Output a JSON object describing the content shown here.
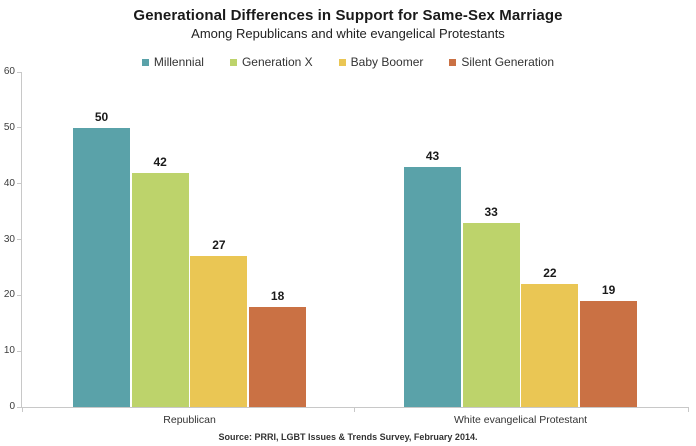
{
  "header": {
    "title": "Generational Differences in Support for Same-Sex Marriage",
    "subtitle": "Among Republicans and white evangelical Protestants"
  },
  "chart_data": {
    "type": "bar",
    "title": "Generational Differences in Support for Same-Sex Marriage",
    "subtitle": "Among Republicans and white evangelical Protestants",
    "categories": [
      "Republican",
      "White evangelical Protestant"
    ],
    "series": [
      {
        "name": "Millennial",
        "color": "#5AA2A9",
        "values": [
          50,
          43
        ]
      },
      {
        "name": "Generation X",
        "color": "#BDD36B",
        "values": [
          42,
          33
        ]
      },
      {
        "name": "Baby Boomer",
        "color": "#EAC654",
        "values": [
          27,
          22
        ]
      },
      {
        "name": "Silent Generation",
        "color": "#CA7144",
        "values": [
          18,
          19
        ]
      }
    ],
    "xlabel": "",
    "ylabel": "",
    "ylim": [
      0,
      60
    ],
    "yticks": [
      0,
      10,
      20,
      30,
      40,
      50,
      60
    ],
    "grid": false,
    "legend_position": "top",
    "value_labels": true
  },
  "footer": {
    "source": "Source: PRRI, LGBT Issues & Trends Survey, February 2014."
  },
  "colors": {
    "axis": "#C8C8C8",
    "tick_text": "#3C3C3C",
    "value_text": "#1A1A1A"
  }
}
